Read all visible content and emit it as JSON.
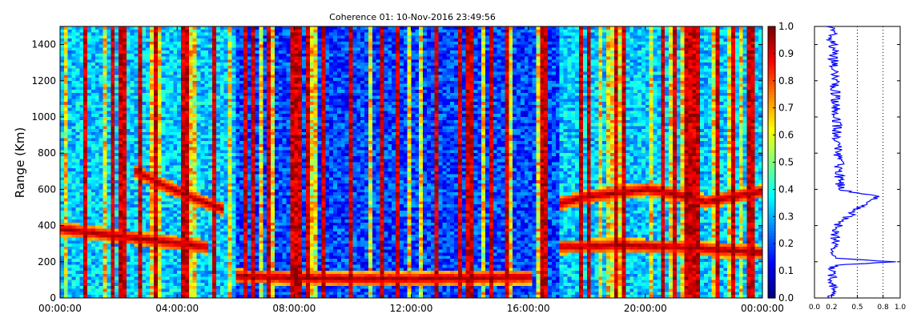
{
  "chart_data": [
    {
      "type": "heatmap",
      "title": "Coherence 01: 10-Nov-2016 23:49:56",
      "xlabel": "",
      "ylabel": "Range (Km)",
      "x_ticks": [
        "00:00:00",
        "04:00:00",
        "08:00:00",
        "12:00:00",
        "16:00:00",
        "20:00:00",
        "00:00:00"
      ],
      "xlim": [
        "00:00:00",
        "24:00:00"
      ],
      "y_ticks": [
        0,
        200,
        400,
        600,
        800,
        1000,
        1200,
        1400
      ],
      "ylim": [
        0,
        1500
      ],
      "colormap": "jet",
      "colorbar": {
        "ticks": [
          "0.0",
          "0.1",
          "0.2",
          "0.3",
          "0.4",
          "0.5",
          "0.6",
          "0.7",
          "0.8",
          "0.9",
          "1.0"
        ],
        "range": [
          0,
          1
        ]
      },
      "features": [
        {
          "description": "high coherence layer",
          "x_hours": [
            0,
            1,
            2,
            3,
            4,
            5
          ],
          "y_km": [
            380,
            360,
            340,
            320,
            300,
            280
          ]
        },
        {
          "description": "descending layer",
          "x_hours": [
            2.5,
            3.5,
            4.5,
            5.5
          ],
          "y_km": [
            700,
            620,
            550,
            490
          ]
        },
        {
          "description": "low layer",
          "x_hours": [
            6,
            8,
            10,
            12,
            14,
            16
          ],
          "y_km": [
            120,
            110,
            105,
            105,
            110,
            115
          ]
        },
        {
          "description": "evening layer",
          "x_hours": [
            17,
            18,
            19,
            20,
            21,
            22,
            23,
            24
          ],
          "y_km": [
            520,
            560,
            580,
            600,
            570,
            530,
            560,
            590
          ]
        },
        {
          "description": "evening low layer",
          "x_hours": [
            17,
            19,
            21,
            23,
            24
          ],
          "y_km": [
            280,
            290,
            280,
            260,
            250
          ]
        }
      ]
    },
    {
      "type": "line",
      "xlim": [
        0,
        1
      ],
      "x_ticks": [
        "0.0",
        "0.2",
        "0.5",
        "0.8",
        "1.0"
      ],
      "ylim": [
        0,
        1500
      ],
      "grid": "vertical dotted at 0.5 and 0.8",
      "color": "#0000ff",
      "profile_points": [
        {
          "y": 0,
          "x": 0.2
        },
        {
          "y": 180,
          "x": 0.22
        },
        {
          "y": 200,
          "x": 0.95
        },
        {
          "y": 220,
          "x": 0.22
        },
        {
          "y": 380,
          "x": 0.25
        },
        {
          "y": 420,
          "x": 0.3
        },
        {
          "y": 560,
          "x": 0.72
        },
        {
          "y": 600,
          "x": 0.3
        },
        {
          "y": 1500,
          "x": 0.2
        }
      ]
    }
  ],
  "colors": {
    "profile_line": "#0000ff",
    "axes": "#000000",
    "background": "#ffffff"
  }
}
